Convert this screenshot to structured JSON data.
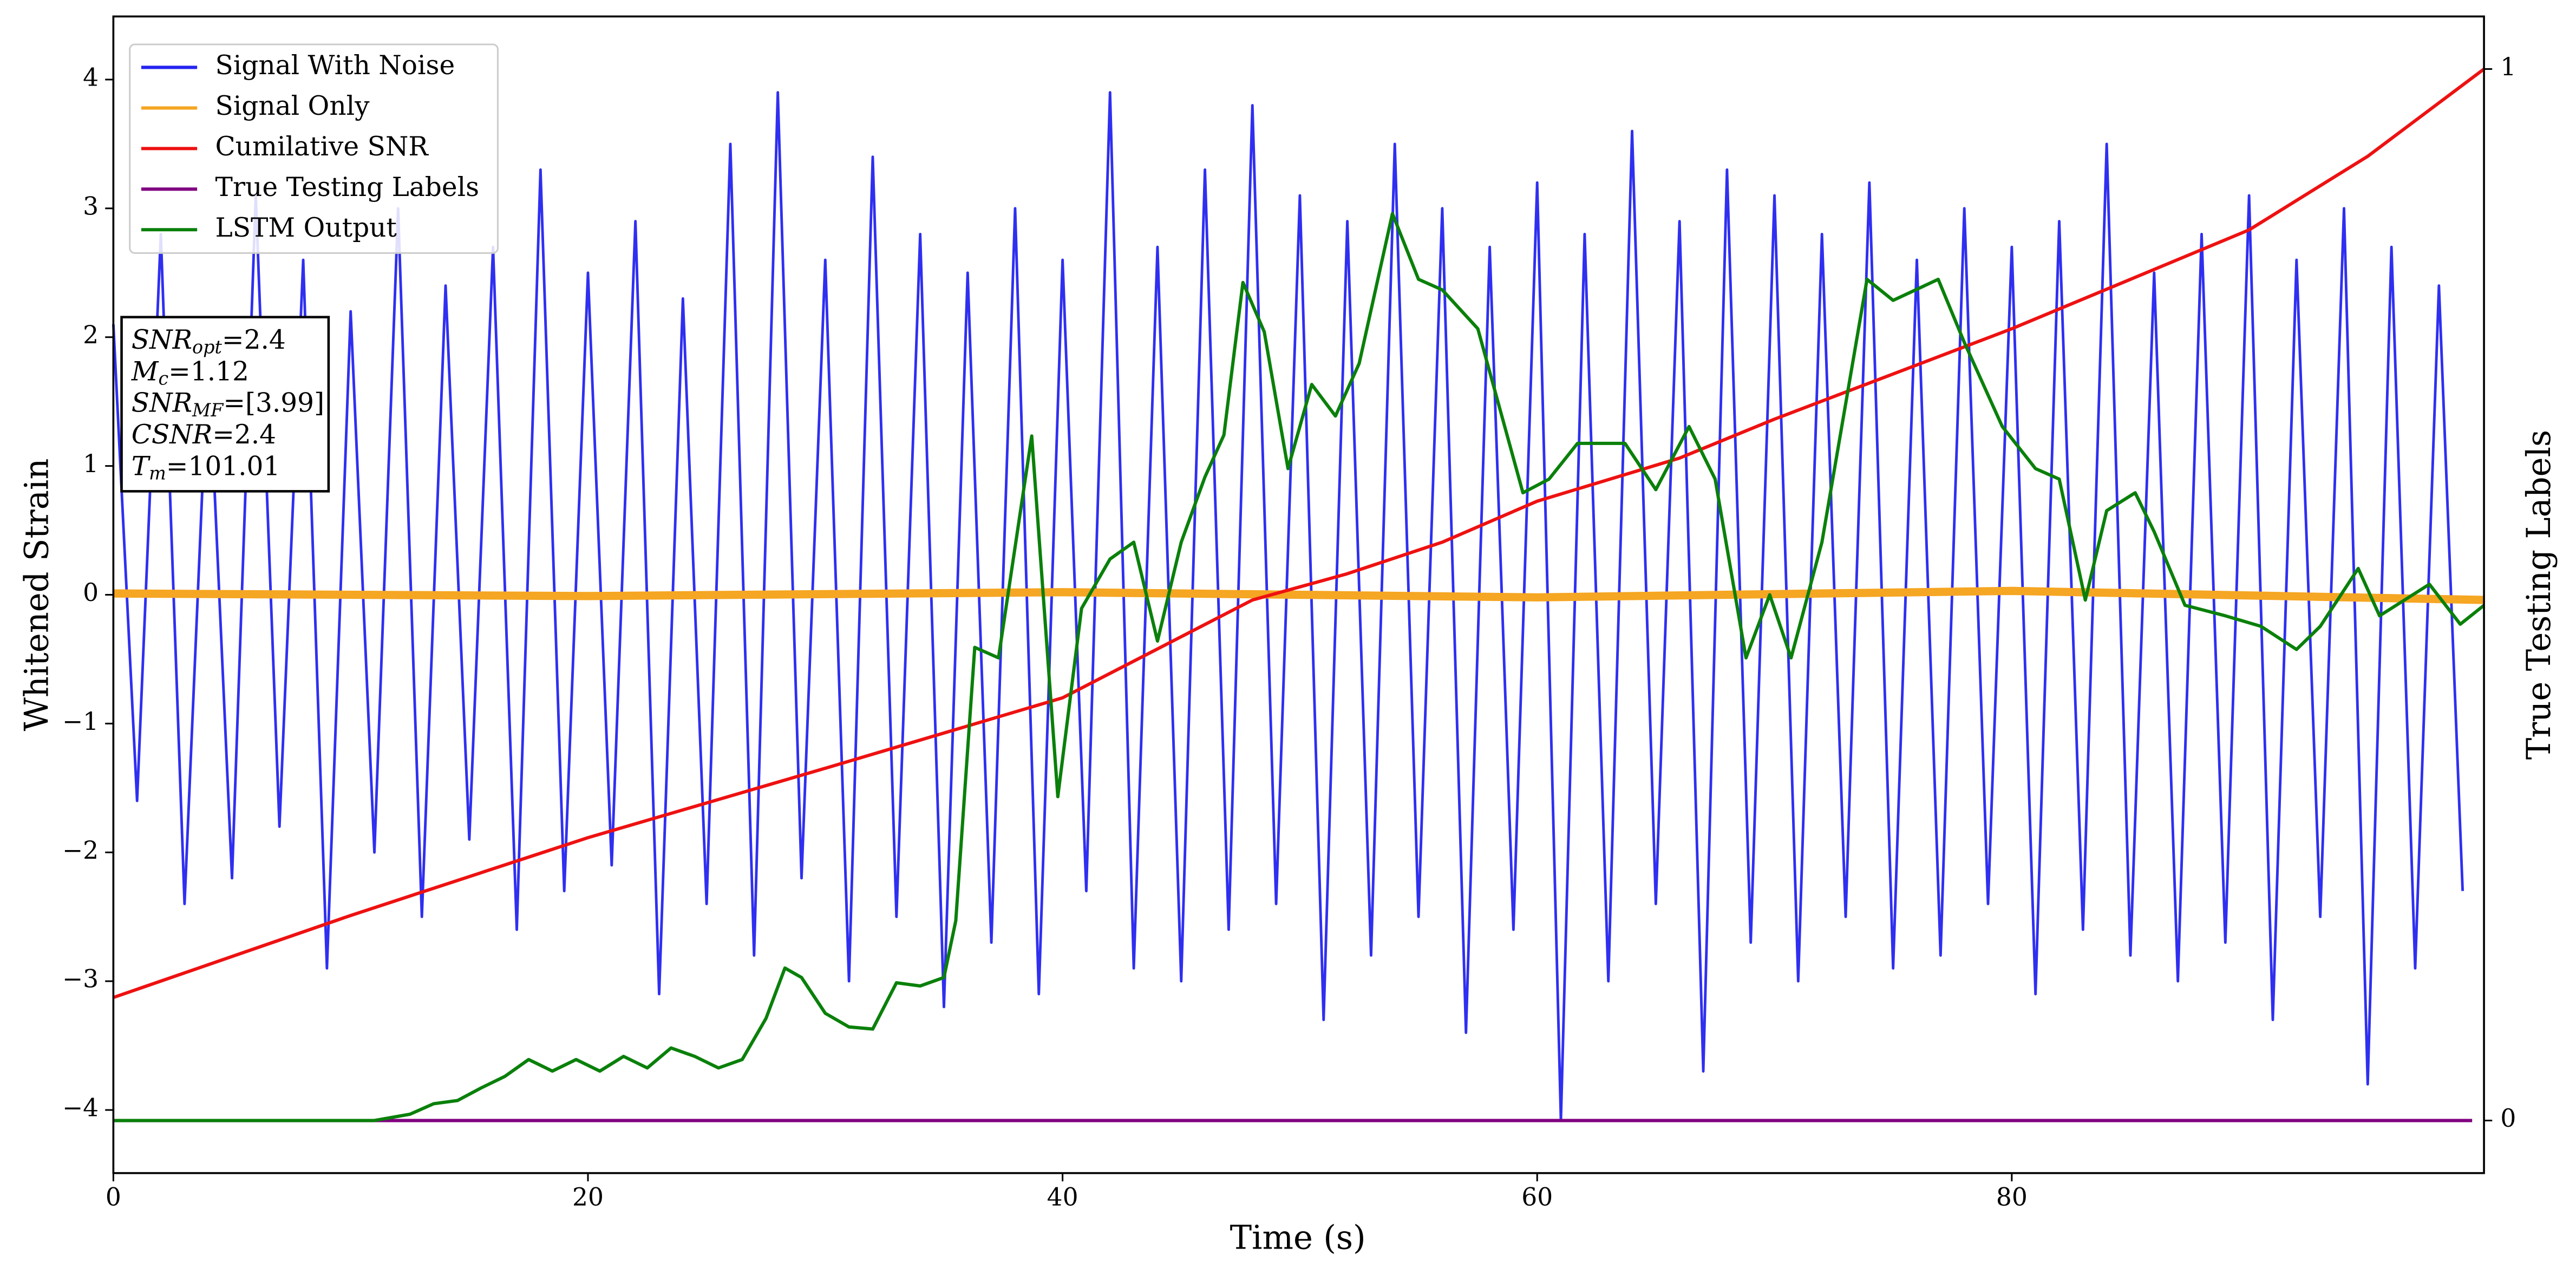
{
  "chart_data": {
    "type": "line",
    "xlabel": "Time (s)",
    "ylabel": "Whitened Strain",
    "y2label": "True Testing Labels",
    "xlim": [
      0,
      99.9
    ],
    "ylim": [
      -4.49,
      4.49
    ],
    "y2lim": [
      -0.05,
      1.05
    ],
    "xticks": [
      0,
      20,
      40,
      60,
      80
    ],
    "yticks": [
      {
        "value": -4,
        "label": "−4"
      },
      {
        "value": -3,
        "label": "−3"
      },
      {
        "value": -2,
        "label": "−2"
      },
      {
        "value": -1,
        "label": "−1"
      },
      0,
      1,
      2,
      3,
      4
    ],
    "y2ticks": [
      0,
      1
    ],
    "legend": "upper left",
    "annotation": [
      {
        "main": "SNR",
        "sub": "opt",
        "rest": "=2.4"
      },
      {
        "main": "M",
        "sub": "c",
        "rest": "=1.12"
      },
      {
        "main": "SNR",
        "sub": "MF",
        "rest": "=[3.99]"
      },
      {
        "main": "CSNR",
        "sub": null,
        "rest": "=2.4"
      },
      {
        "main": "T",
        "sub": "m",
        "rest": "=101.01"
      }
    ],
    "series": [
      {
        "name": "Signal With Noise",
        "color": "#2424f0",
        "x": [
          0,
          1,
          2,
          3,
          4,
          5,
          6,
          7,
          8,
          9,
          10,
          11,
          12,
          13,
          14,
          15,
          16,
          17,
          18,
          19,
          20,
          21,
          22,
          23,
          24,
          25,
          26,
          27,
          28,
          29,
          30,
          31,
          32,
          33,
          34,
          35,
          36,
          37,
          38,
          39,
          40,
          41,
          42,
          43,
          44,
          45,
          46,
          47,
          48,
          49,
          50,
          51,
          52,
          53,
          54,
          55,
          56,
          57,
          58,
          59,
          60,
          61,
          62,
          63,
          64,
          65,
          66,
          67,
          68,
          69,
          70,
          71,
          72,
          73,
          74,
          75,
          76,
          77,
          78,
          79,
          80,
          81,
          82,
          83,
          84,
          85,
          86,
          87,
          88,
          89,
          90,
          91,
          92,
          93,
          94,
          95,
          96,
          97,
          98,
          99
        ],
        "values": [
          2.1,
          -1.6,
          2.8,
          -2.4,
          1.9,
          -2.2,
          3.1,
          -1.8,
          2.6,
          -2.9,
          2.2,
          -2.0,
          3.0,
          -2.5,
          2.4,
          -1.9,
          2.7,
          -2.6,
          3.3,
          -2.3,
          2.5,
          -2.1,
          2.9,
          -3.1,
          2.3,
          -2.4,
          3.5,
          -2.8,
          3.9,
          -2.2,
          2.6,
          -3.0,
          3.4,
          -2.5,
          2.8,
          -3.2,
          2.5,
          -2.7,
          3.0,
          -3.1,
          2.6,
          -2.3,
          3.9,
          -2.9,
          2.7,
          -3.0,
          3.3,
          -2.6,
          3.8,
          -2.4,
          3.1,
          -3.3,
          2.9,
          -2.8,
          3.5,
          -2.5,
          3.0,
          -3.4,
          2.7,
          -2.6,
          3.2,
          -4.08,
          2.8,
          -3.0,
          3.6,
          -2.4,
          2.9,
          -3.7,
          3.3,
          -2.7,
          3.1,
          -3.0,
          2.8,
          -2.5,
          3.2,
          -2.9,
          2.6,
          -2.8,
          3.0,
          -2.4,
          2.7,
          -3.1,
          2.9,
          -2.6,
          3.5,
          -2.8,
          2.5,
          -3.0,
          2.8,
          -2.7,
          3.1,
          -3.3,
          2.6,
          -2.5,
          3.0,
          -3.8,
          2.7,
          -2.9,
          2.4,
          -2.3
        ]
      },
      {
        "name": "Signal Only",
        "color": "#f5a623",
        "x": [
          0,
          20,
          40,
          60,
          80,
          99.9
        ],
        "values": [
          0.01,
          -0.01,
          0.02,
          -0.02,
          0.03,
          -0.04
        ]
      },
      {
        "name": "Cumilative SNR",
        "color": "#ee1111",
        "axis": "y2",
        "x": [
          0,
          10,
          20,
          30,
          40,
          48,
          52,
          56,
          60,
          66,
          70,
          80,
          90,
          95,
          99.9
        ],
        "values": [
          0.117,
          0.195,
          0.269,
          0.335,
          0.402,
          0.495,
          0.52,
          0.55,
          0.589,
          0.63,
          0.667,
          0.753,
          0.847,
          0.917,
          1.0
        ]
      },
      {
        "name": "True Testing Labels",
        "color": "#800080",
        "axis": "y2",
        "x": [
          0,
          99.4
        ],
        "values": [
          0,
          0
        ]
      },
      {
        "name": "LSTM Output",
        "color": "#0a800a",
        "axis": "y2",
        "x": [
          0,
          11,
          12.5,
          13.5,
          14.5,
          15.5,
          16.5,
          17.5,
          18.5,
          19.5,
          20.5,
          21.5,
          22.5,
          23.5,
          24.5,
          25.5,
          26.5,
          27.5,
          28.3,
          29,
          30,
          31,
          32,
          33,
          34,
          35,
          35.5,
          36.3,
          37.3,
          38.7,
          39.8,
          40.8,
          42,
          43,
          44,
          45,
          46,
          46.8,
          47.6,
          48.5,
          49.5,
          50.5,
          51.5,
          52.5,
          53.9,
          55,
          56,
          57.5,
          59.4,
          60.5,
          61.7,
          63.7,
          65,
          66.4,
          67.5,
          68.8,
          69.8,
          70.7,
          72,
          73.9,
          75,
          76.9,
          78,
          79.6,
          81,
          82,
          83.1,
          84,
          85.2,
          86,
          87.3,
          89,
          90.5,
          92,
          93,
          94.6,
          95.5,
          97.6,
          98.9,
          99.9
        ],
        "values": [
          0,
          0,
          0.006,
          0.016,
          0.019,
          0.031,
          0.042,
          0.058,
          0.047,
          0.058,
          0.047,
          0.061,
          0.05,
          0.069,
          0.061,
          0.05,
          0.058,
          0.097,
          0.145,
          0.136,
          0.102,
          0.089,
          0.087,
          0.131,
          0.128,
          0.136,
          0.19,
          0.45,
          0.44,
          0.651,
          0.308,
          0.487,
          0.534,
          0.55,
          0.456,
          0.55,
          0.612,
          0.652,
          0.797,
          0.75,
          0.62,
          0.7,
          0.67,
          0.72,
          0.8625,
          0.8,
          0.79,
          0.753,
          0.597,
          0.61,
          0.644,
          0.644,
          0.6,
          0.66,
          0.61,
          0.44,
          0.5,
          0.44,
          0.55,
          0.8,
          0.78,
          0.8,
          0.74,
          0.66,
          0.62,
          0.61,
          0.495,
          0.58,
          0.597,
          0.56,
          0.49,
          0.48,
          0.47,
          0.448,
          0.47,
          0.525,
          0.48,
          0.51,
          0.472,
          0.49
        ]
      }
    ]
  }
}
